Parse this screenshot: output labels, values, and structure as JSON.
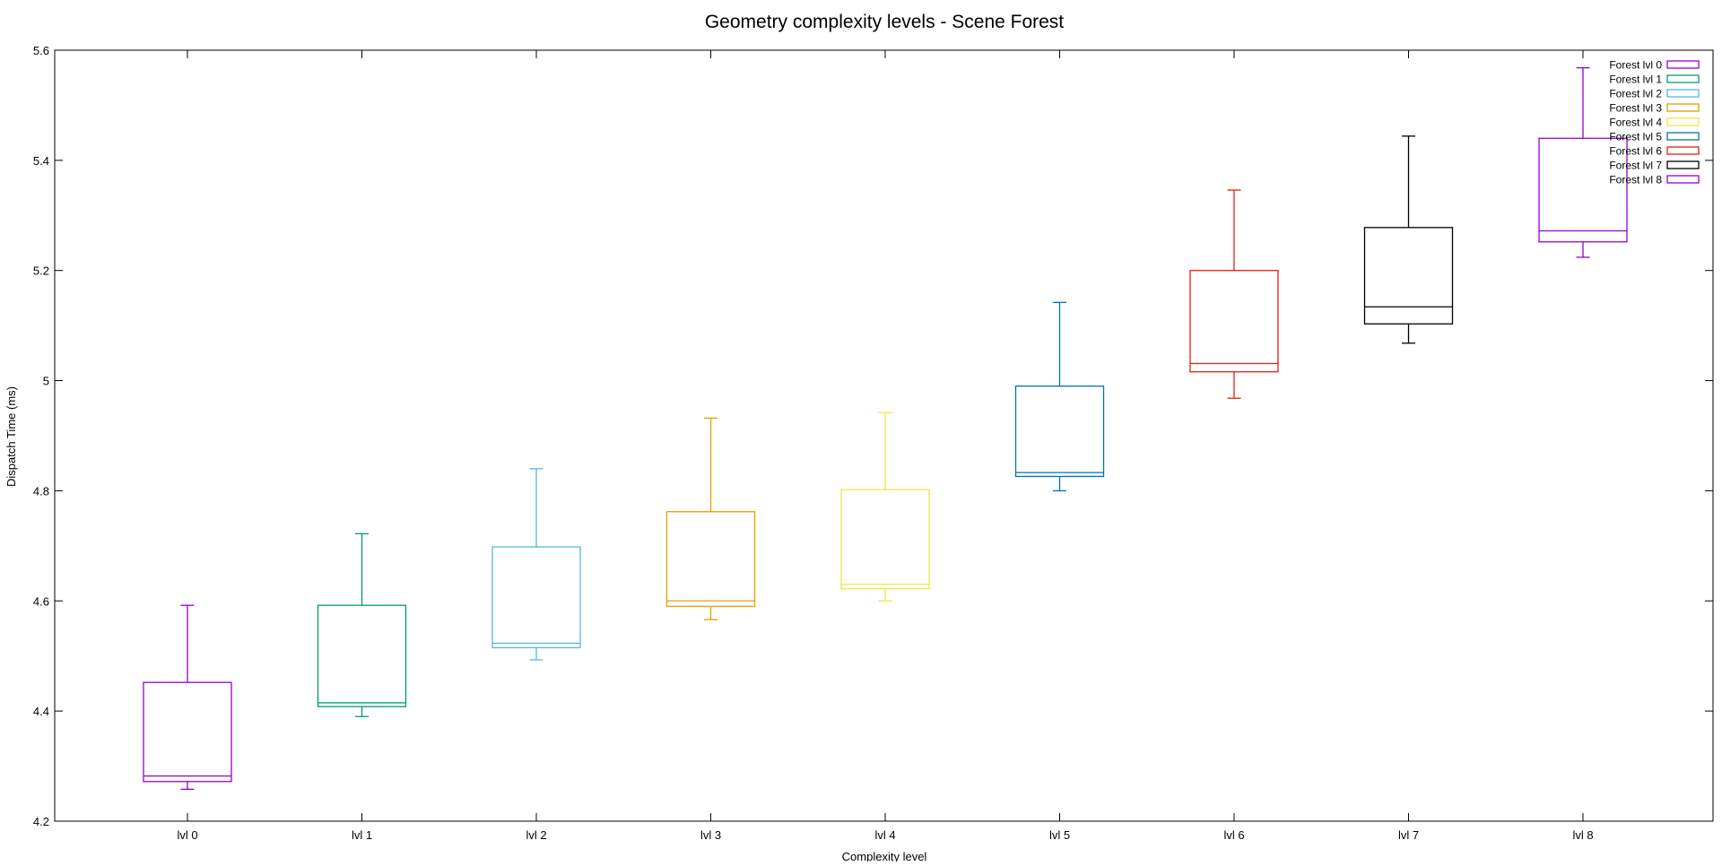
{
  "chart_data": {
    "type": "box",
    "title": "Geometry complexity levels - Scene Forest",
    "xlabel": "Complexity level",
    "ylabel": "Dispatch Time (ms)",
    "ylim": [
      4.2,
      5.6
    ],
    "yticks": [
      {
        "value": 4.2,
        "label": "4.2"
      },
      {
        "value": 4.4,
        "label": "4.4"
      },
      {
        "value": 4.6,
        "label": "4.6"
      },
      {
        "value": 4.8,
        "label": "4.8"
      },
      {
        "value": 5.0,
        "label": "5"
      },
      {
        "value": 5.2,
        "label": "5.2"
      },
      {
        "value": 5.4,
        "label": "5.4"
      },
      {
        "value": 5.6,
        "label": "5.6"
      }
    ],
    "categories": [
      "lvl 0",
      "lvl 1",
      "lvl 2",
      "lvl 3",
      "lvl 4",
      "lvl 5",
      "lvl 6",
      "lvl 7",
      "lvl 8"
    ],
    "grid": false,
    "legend_position": "top-right",
    "series": [
      {
        "name": "Forest lvl 0",
        "color": "#9400d3",
        "min": 4.258,
        "q1": 4.272,
        "median": 4.282,
        "q3": 4.452,
        "max": 4.592
      },
      {
        "name": "Forest lvl 1",
        "color": "#009e73",
        "min": 4.39,
        "q1": 4.408,
        "median": 4.415,
        "q3": 4.592,
        "max": 4.722
      },
      {
        "name": "Forest lvl 2",
        "color": "#56b4e9",
        "min": 4.493,
        "q1": 4.515,
        "median": 4.523,
        "q3": 4.698,
        "max": 4.84
      },
      {
        "name": "Forest lvl 3",
        "color": "#e69f00",
        "min": 4.566,
        "q1": 4.59,
        "median": 4.6,
        "q3": 4.762,
        "max": 4.932
      },
      {
        "name": "Forest lvl 4",
        "color": "#f0e442",
        "min": 4.6,
        "q1": 4.622,
        "median": 4.63,
        "q3": 4.802,
        "max": 4.942
      },
      {
        "name": "Forest lvl 5",
        "color": "#0072b2",
        "min": 4.8,
        "q1": 4.826,
        "median": 4.833,
        "q3": 4.99,
        "max": 5.142
      },
      {
        "name": "Forest lvl 6",
        "color": "#e51e10",
        "min": 4.968,
        "q1": 5.016,
        "median": 5.031,
        "q3": 5.2,
        "max": 5.346
      },
      {
        "name": "Forest lvl 7",
        "color": "#000000",
        "min": 5.068,
        "q1": 5.103,
        "median": 5.134,
        "q3": 5.278,
        "max": 5.444
      },
      {
        "name": "Forest lvl 8",
        "color": "#9400d3",
        "min": 5.224,
        "q1": 5.252,
        "median": 5.272,
        "q3": 5.44,
        "max": 5.568
      }
    ]
  }
}
